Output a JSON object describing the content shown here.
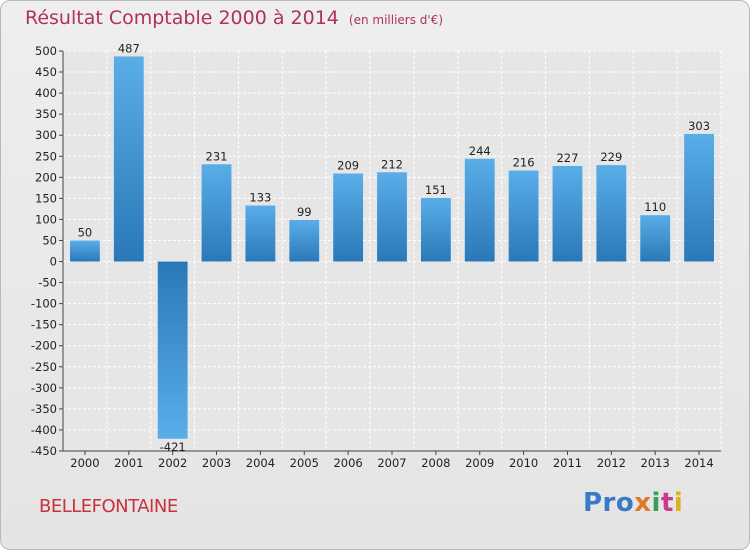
{
  "chart_data": {
    "type": "bar",
    "title": "Résultat Comptable 2000 à 2014",
    "subtitle": "(en milliers d'€)",
    "categories": [
      "2000",
      "2001",
      "2002",
      "2003",
      "2004",
      "2005",
      "2006",
      "2007",
      "2008",
      "2009",
      "2010",
      "2011",
      "2012",
      "2013",
      "2014"
    ],
    "values": [
      50,
      487,
      -421,
      231,
      133,
      99,
      209,
      212,
      151,
      244,
      216,
      227,
      229,
      110,
      303
    ],
    "ylim": [
      -450,
      500
    ],
    "yticks": [
      500,
      450,
      400,
      350,
      300,
      250,
      200,
      150,
      100,
      50,
      0,
      -50,
      -100,
      -150,
      -200,
      -250,
      -300,
      -350,
      -400,
      -450
    ],
    "xlabel": "",
    "ylabel": "",
    "grid": true,
    "colors": {
      "bar_light": "#5aaee8",
      "bar_dark": "#2a78b8",
      "grid": "#ffffff",
      "axis": "#444444"
    }
  },
  "footer": {
    "commune": "BELLEFONTAINE",
    "brand": {
      "p1": "Pro",
      "p2": "x",
      "p3": "i",
      "p4": "t",
      "p5": "i"
    }
  }
}
